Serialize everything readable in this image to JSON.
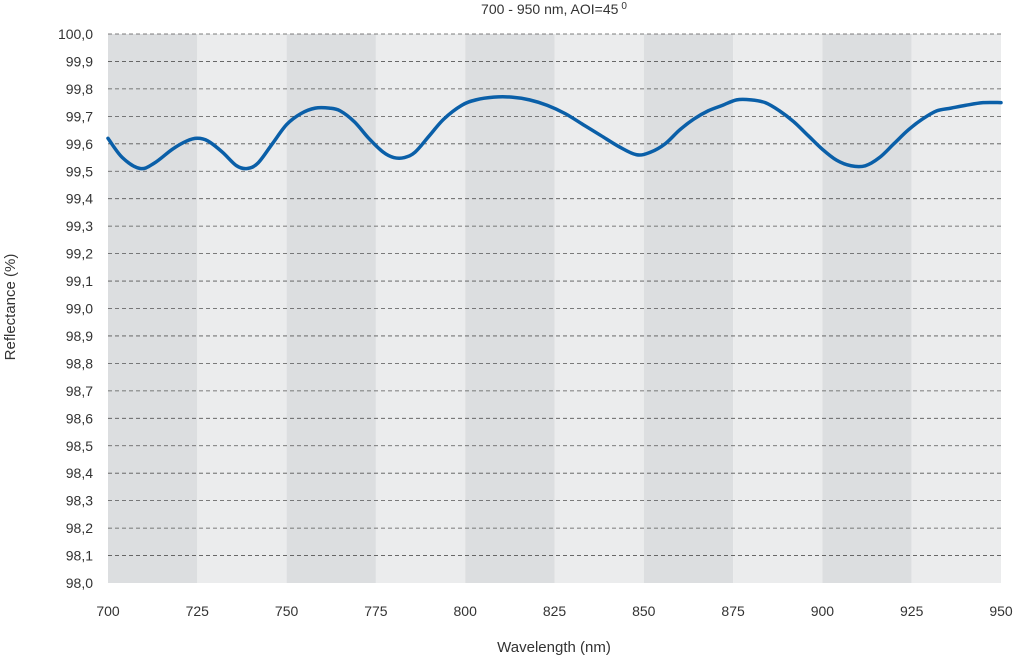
{
  "chart_data": {
    "type": "line",
    "title": "700 - 950 nm, AOI=45",
    "title_superscript": "0",
    "xlabel": "Wavelength (nm)",
    "ylabel": "Reflectance (%)",
    "xlim": [
      700,
      950
    ],
    "ylim": [
      98.0,
      100.0
    ],
    "x_ticks": [
      700,
      725,
      750,
      775,
      800,
      825,
      850,
      875,
      900,
      925,
      950
    ],
    "x_tick_labels": [
      "700",
      "725",
      "750",
      "775",
      "800",
      "825",
      "850",
      "875",
      "900",
      "925",
      "950"
    ],
    "y_ticks": [
      98.0,
      98.1,
      98.2,
      98.3,
      98.4,
      98.5,
      98.6,
      98.7,
      98.8,
      98.9,
      99.0,
      99.1,
      99.2,
      99.3,
      99.4,
      99.5,
      99.6,
      99.7,
      99.8,
      99.9,
      100.0
    ],
    "y_tick_labels": [
      "98,0",
      "98,1",
      "98,2",
      "98,3",
      "98,4",
      "98,5",
      "98,6",
      "98,7",
      "98,8",
      "98,9",
      "99,0",
      "99,1",
      "99,2",
      "99,3",
      "99,4",
      "99,5",
      "99,6",
      "99,7",
      "99,8",
      "99,9",
      "100,0"
    ],
    "grid": true,
    "band_colors": [
      "#dcdee0",
      "#ebeced"
    ],
    "series": [
      {
        "color": "#0a5fa8",
        "x": [
          700,
          704,
          709,
          713,
          718,
          722,
          725,
          728,
          732,
          736,
          739,
          742,
          746,
          750,
          754,
          758,
          762,
          765,
          769,
          773,
          777,
          780,
          783,
          786,
          790,
          794,
          799,
          803,
          808,
          813,
          818,
          823,
          828,
          833,
          838,
          843,
          848,
          852,
          856,
          860,
          864,
          868,
          872,
          876,
          880,
          884,
          888,
          892,
          896,
          900,
          904,
          908,
          912,
          916,
          920,
          924,
          928,
          932,
          936,
          940,
          945,
          950
        ],
        "y": [
          99.62,
          99.55,
          99.51,
          99.53,
          99.58,
          99.61,
          99.62,
          99.61,
          99.57,
          99.52,
          99.51,
          99.53,
          99.6,
          99.67,
          99.71,
          99.73,
          99.73,
          99.72,
          99.68,
          99.62,
          99.57,
          99.55,
          99.55,
          99.57,
          99.63,
          99.69,
          99.74,
          99.76,
          99.77,
          99.77,
          99.76,
          99.74,
          99.71,
          99.67,
          99.63,
          99.59,
          99.56,
          99.57,
          99.6,
          99.65,
          99.69,
          99.72,
          99.74,
          99.76,
          99.76,
          99.75,
          99.72,
          99.68,
          99.63,
          99.58,
          99.54,
          99.52,
          99.52,
          99.55,
          99.6,
          99.65,
          99.69,
          99.72,
          99.73,
          99.74,
          99.75,
          99.75
        ]
      }
    ]
  }
}
